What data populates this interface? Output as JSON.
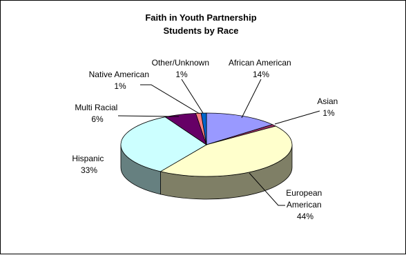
{
  "chart_data": {
    "type": "pie",
    "title": "Faith in Youth Partnership",
    "subtitle": "Students by Race",
    "legend": "none",
    "slices": [
      {
        "name": "African American",
        "value": 14,
        "label": "14%",
        "top_color": "#9999ff",
        "side_color": "#4c4c80"
      },
      {
        "name": "Asian",
        "value": 1,
        "label": "1%",
        "top_color": "#993366",
        "side_color": "#4c1933"
      },
      {
        "name": "European American",
        "value": 44,
        "label": "44%",
        "top_color": "#ffffcc",
        "side_color": "#7f7f66"
      },
      {
        "name": "Hispanic",
        "value": 33,
        "label": "33%",
        "top_color": "#ccffff",
        "side_color": "#668080"
      },
      {
        "name": "Multi Racial",
        "value": 6,
        "label": "6%",
        "top_color": "#660066",
        "side_color": "#330033"
      },
      {
        "name": "Native American",
        "value": 1,
        "label": "1%",
        "top_color": "#ff8080",
        "side_color": "#804040"
      },
      {
        "name": "Other/Unknown",
        "value": 1,
        "label": "1%",
        "top_color": "#0066cc",
        "side_color": "#003366"
      }
    ]
  }
}
